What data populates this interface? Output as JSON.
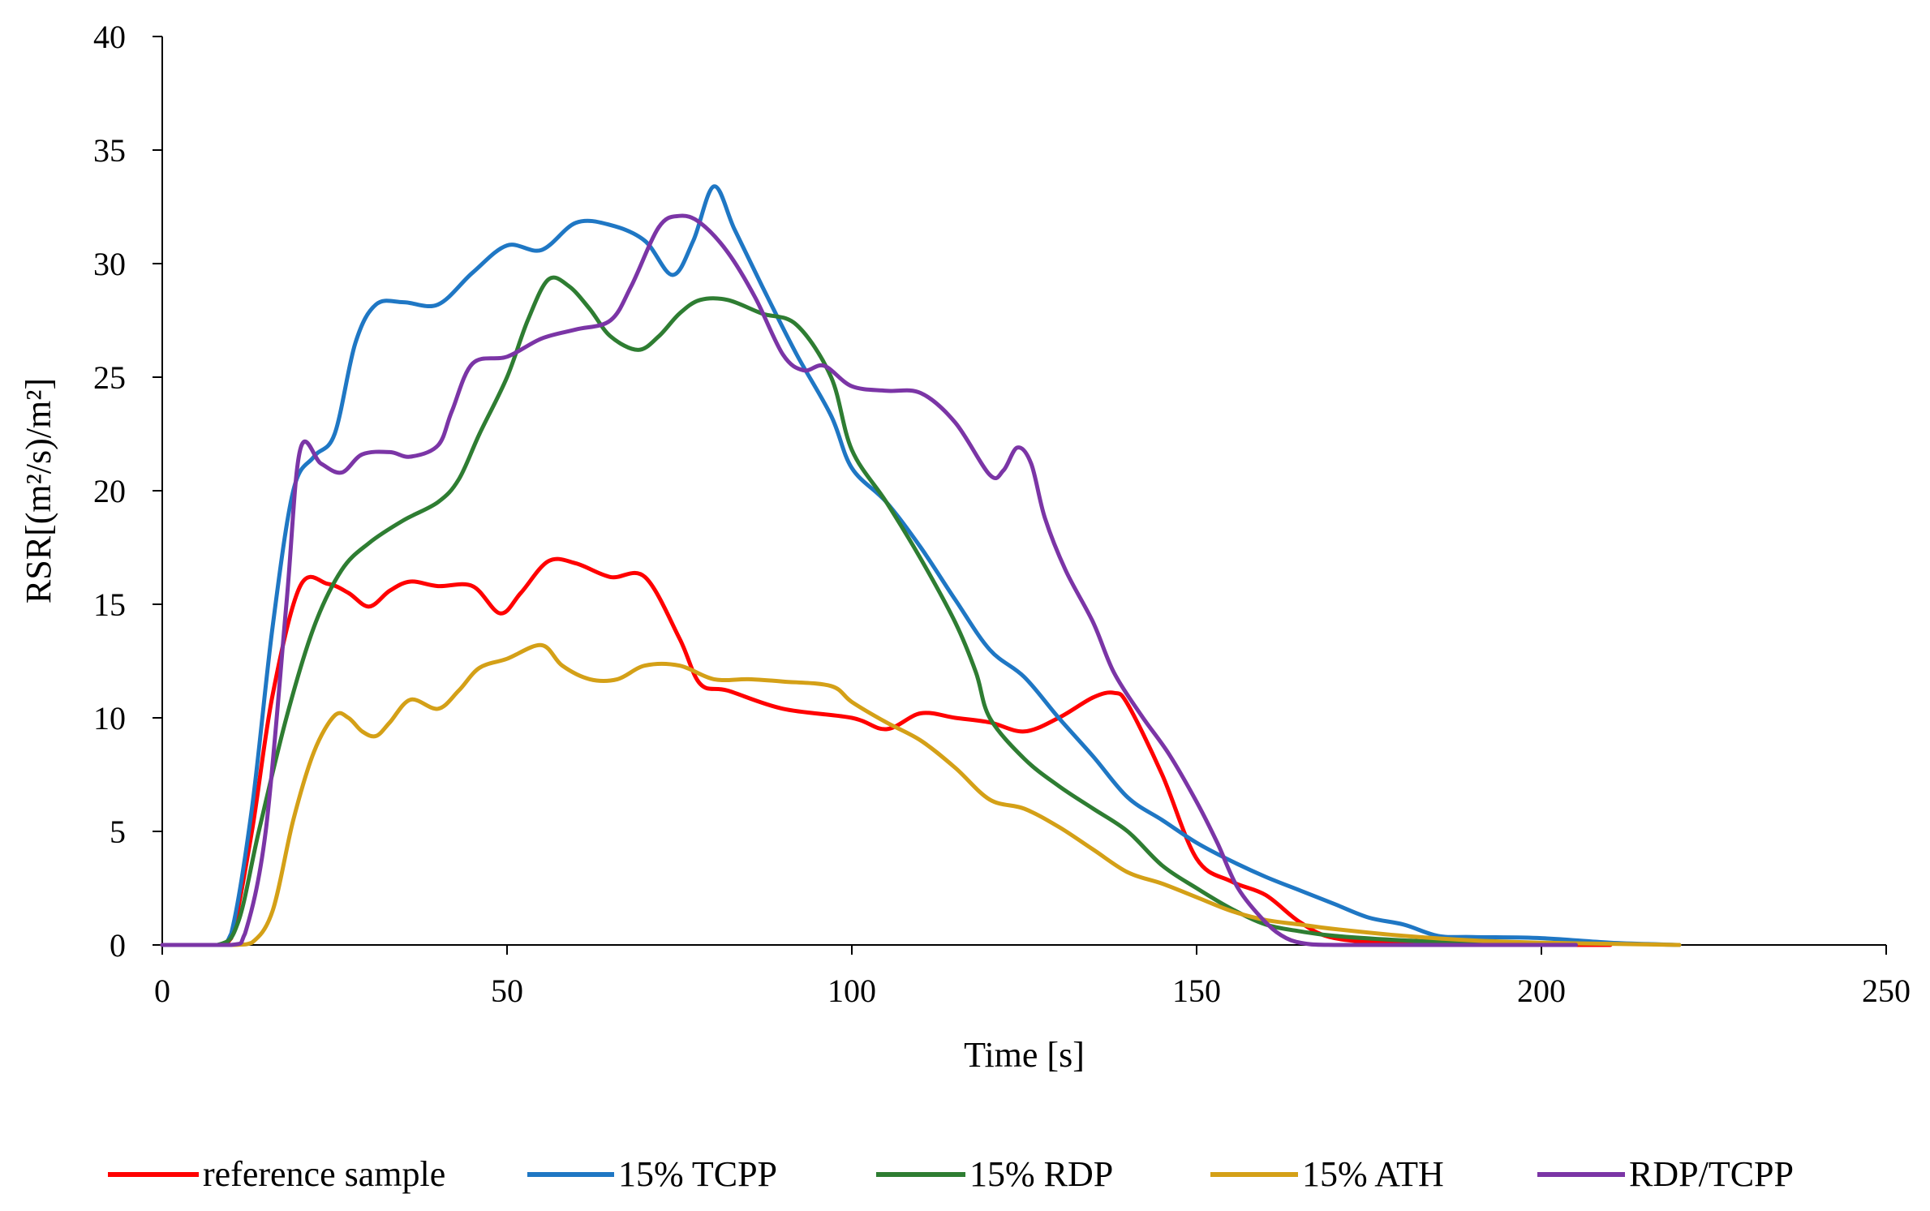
{
  "chart_data": {
    "type": "line",
    "title": "",
    "xlabel": "Time [s]",
    "ylabel": "RSR[(m²/s)/m²]",
    "xlim": [
      0,
      250
    ],
    "ylim": [
      0,
      40
    ],
    "xticks": [
      0,
      50,
      100,
      150,
      200,
      250
    ],
    "yticks": [
      0,
      5,
      10,
      15,
      20,
      25,
      30,
      35,
      40
    ],
    "grid": false,
    "legend_position": "bottom",
    "series": [
      {
        "name": "reference sample",
        "color": "#ff0000",
        "points": [
          [
            0,
            0
          ],
          [
            8,
            0
          ],
          [
            10,
            0.3
          ],
          [
            13,
            5
          ],
          [
            16,
            11
          ],
          [
            20,
            15.8
          ],
          [
            24,
            15.9
          ],
          [
            27,
            15.5
          ],
          [
            30,
            14.9
          ],
          [
            33,
            15.6
          ],
          [
            36,
            16
          ],
          [
            40,
            15.8
          ],
          [
            45,
            15.8
          ],
          [
            49,
            14.6
          ],
          [
            52,
            15.5
          ],
          [
            56,
            16.9
          ],
          [
            60,
            16.8
          ],
          [
            65,
            16.2
          ],
          [
            70,
            16.2
          ],
          [
            75,
            13.5
          ],
          [
            78,
            11.5
          ],
          [
            82,
            11.2
          ],
          [
            90,
            10.4
          ],
          [
            100,
            10
          ],
          [
            105,
            9.5
          ],
          [
            110,
            10.2
          ],
          [
            115,
            10
          ],
          [
            120,
            9.8
          ],
          [
            125,
            9.4
          ],
          [
            130,
            10
          ],
          [
            135,
            10.9
          ],
          [
            138,
            11.1
          ],
          [
            140,
            10.6
          ],
          [
            145,
            7.5
          ],
          [
            150,
            3.8
          ],
          [
            155,
            2.8
          ],
          [
            160,
            2.2
          ],
          [
            165,
            1
          ],
          [
            170,
            0.3
          ],
          [
            180,
            0.05
          ],
          [
            190,
            0
          ],
          [
            200,
            0
          ],
          [
            210,
            0
          ]
        ]
      },
      {
        "name": "15% TCPP",
        "color": "#1f77c4",
        "points": [
          [
            0,
            0
          ],
          [
            8,
            0
          ],
          [
            10,
            0.5
          ],
          [
            13,
            6
          ],
          [
            16,
            14
          ],
          [
            19,
            20
          ],
          [
            22,
            21.5
          ],
          [
            25,
            22.5
          ],
          [
            28,
            26.5
          ],
          [
            31,
            28.2
          ],
          [
            35,
            28.3
          ],
          [
            40,
            28.2
          ],
          [
            45,
            29.6
          ],
          [
            50,
            30.8
          ],
          [
            55,
            30.6
          ],
          [
            60,
            31.8
          ],
          [
            65,
            31.7
          ],
          [
            70,
            31
          ],
          [
            74,
            29.5
          ],
          [
            77,
            31
          ],
          [
            80,
            33.4
          ],
          [
            83,
            31.5
          ],
          [
            87,
            29
          ],
          [
            92,
            26
          ],
          [
            97,
            23.3
          ],
          [
            100,
            21
          ],
          [
            105,
            19.5
          ],
          [
            110,
            17.5
          ],
          [
            115,
            15.2
          ],
          [
            120,
            13
          ],
          [
            125,
            11.8
          ],
          [
            130,
            10
          ],
          [
            135,
            8.3
          ],
          [
            140,
            6.5
          ],
          [
            145,
            5.5
          ],
          [
            150,
            4.5
          ],
          [
            155,
            3.7
          ],
          [
            160,
            3
          ],
          [
            165,
            2.4
          ],
          [
            170,
            1.8
          ],
          [
            175,
            1.2
          ],
          [
            180,
            0.9
          ],
          [
            185,
            0.4
          ],
          [
            190,
            0.35
          ],
          [
            200,
            0.3
          ],
          [
            210,
            0.1
          ],
          [
            220,
            0
          ]
        ]
      },
      {
        "name": "15% RDP",
        "color": "#2e7d32",
        "points": [
          [
            0,
            0
          ],
          [
            8,
            0
          ],
          [
            11,
            1
          ],
          [
            14,
            5
          ],
          [
            18,
            10
          ],
          [
            22,
            14
          ],
          [
            26,
            16.5
          ],
          [
            30,
            17.7
          ],
          [
            35,
            18.7
          ],
          [
            40,
            19.5
          ],
          [
            43,
            20.5
          ],
          [
            46,
            22.5
          ],
          [
            50,
            25
          ],
          [
            53,
            27.5
          ],
          [
            56,
            29.3
          ],
          [
            59,
            29
          ],
          [
            62,
            28
          ],
          [
            65,
            26.8
          ],
          [
            69,
            26.2
          ],
          [
            72,
            26.8
          ],
          [
            75,
            27.8
          ],
          [
            78,
            28.4
          ],
          [
            82,
            28.4
          ],
          [
            87,
            27.8
          ],
          [
            92,
            27.3
          ],
          [
            97,
            25
          ],
          [
            100,
            21.8
          ],
          [
            105,
            19.5
          ],
          [
            110,
            17
          ],
          [
            115,
            14.2
          ],
          [
            118,
            12
          ],
          [
            120,
            10
          ],
          [
            125,
            8.2
          ],
          [
            130,
            7
          ],
          [
            135,
            6
          ],
          [
            140,
            5
          ],
          [
            145,
            3.5
          ],
          [
            150,
            2.5
          ],
          [
            155,
            1.6
          ],
          [
            160,
            0.9
          ],
          [
            165,
            0.6
          ],
          [
            170,
            0.4
          ],
          [
            180,
            0.2
          ],
          [
            190,
            0.1
          ],
          [
            200,
            0
          ]
        ]
      },
      {
        "name": "15% ATH",
        "color": "#d4a017",
        "points": [
          [
            0,
            0
          ],
          [
            10,
            0
          ],
          [
            13,
            0.1
          ],
          [
            16,
            1.5
          ],
          [
            19,
            5.5
          ],
          [
            22,
            8.5
          ],
          [
            25,
            10.1
          ],
          [
            27,
            10
          ],
          [
            29,
            9.4
          ],
          [
            31,
            9.2
          ],
          [
            33,
            9.8
          ],
          [
            36,
            10.8
          ],
          [
            40,
            10.4
          ],
          [
            43,
            11.2
          ],
          [
            46,
            12.2
          ],
          [
            50,
            12.6
          ],
          [
            55,
            13.2
          ],
          [
            58,
            12.3
          ],
          [
            62,
            11.7
          ],
          [
            66,
            11.7
          ],
          [
            70,
            12.3
          ],
          [
            75,
            12.3
          ],
          [
            80,
            11.7
          ],
          [
            85,
            11.7
          ],
          [
            90,
            11.6
          ],
          [
            97,
            11.4
          ],
          [
            100,
            10.7
          ],
          [
            105,
            9.8
          ],
          [
            110,
            9
          ],
          [
            115,
            7.8
          ],
          [
            120,
            6.4
          ],
          [
            125,
            6
          ],
          [
            130,
            5.2
          ],
          [
            135,
            4.2
          ],
          [
            140,
            3.2
          ],
          [
            145,
            2.7
          ],
          [
            150,
            2.1
          ],
          [
            155,
            1.5
          ],
          [
            160,
            1.1
          ],
          [
            165,
            0.9
          ],
          [
            170,
            0.7
          ],
          [
            180,
            0.4
          ],
          [
            190,
            0.2
          ],
          [
            200,
            0.1
          ],
          [
            210,
            0.05
          ],
          [
            220,
            0
          ]
        ]
      },
      {
        "name": "RDP/TCPP",
        "color": "#7b35a6",
        "points": [
          [
            0,
            0
          ],
          [
            10,
            0
          ],
          [
            12,
            0.5
          ],
          [
            15,
            5
          ],
          [
            18,
            15
          ],
          [
            20,
            21.8
          ],
          [
            23,
            21.2
          ],
          [
            26,
            20.8
          ],
          [
            29,
            21.6
          ],
          [
            33,
            21.7
          ],
          [
            36,
            21.5
          ],
          [
            40,
            22
          ],
          [
            42,
            23.5
          ],
          [
            45,
            25.6
          ],
          [
            50,
            25.9
          ],
          [
            55,
            26.7
          ],
          [
            60,
            27.1
          ],
          [
            65,
            27.5
          ],
          [
            68,
            29
          ],
          [
            72,
            31.6
          ],
          [
            75,
            32.1
          ],
          [
            78,
            31.8
          ],
          [
            82,
            30.5
          ],
          [
            86,
            28.5
          ],
          [
            90,
            26
          ],
          [
            93,
            25.3
          ],
          [
            96,
            25.5
          ],
          [
            100,
            24.6
          ],
          [
            105,
            24.4
          ],
          [
            110,
            24.3
          ],
          [
            115,
            23
          ],
          [
            120,
            20.7
          ],
          [
            122,
            20.9
          ],
          [
            124,
            21.9
          ],
          [
            126,
            21.2
          ],
          [
            128,
            18.8
          ],
          [
            131,
            16.5
          ],
          [
            135,
            14.2
          ],
          [
            138,
            12
          ],
          [
            142,
            10.1
          ],
          [
            146,
            8.4
          ],
          [
            150,
            6.3
          ],
          [
            153,
            4.5
          ],
          [
            156,
            2.5
          ],
          [
            160,
            1
          ],
          [
            163,
            0.3
          ],
          [
            166,
            0.05
          ],
          [
            170,
            0
          ],
          [
            180,
            0
          ],
          [
            190,
            0
          ],
          [
            200,
            0
          ],
          [
            205,
            0
          ]
        ]
      }
    ]
  }
}
